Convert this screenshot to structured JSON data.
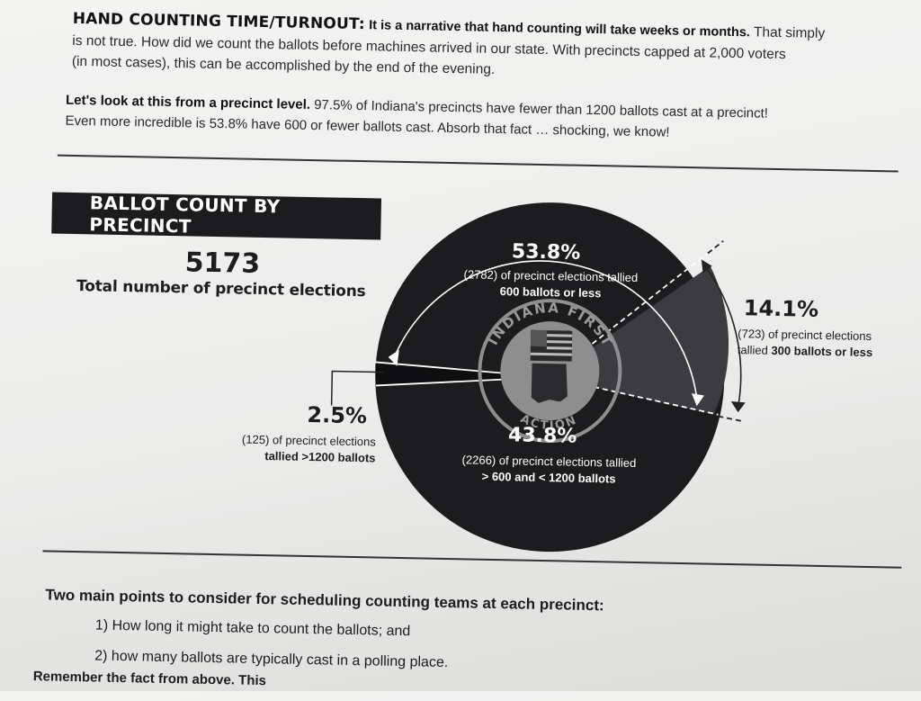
{
  "intro": {
    "heading": "HAND COUNTING TIME/TURNOUT:",
    "claim": "It is a narrative that hand counting will take weeks or months.",
    "line1_rest": " That simply",
    "line2": "is not true. How did we count the ballots before machines arrived in our state. With precincts capped at 2,000 voters",
    "line3": "(in most cases), this can be accomplished by the end of the evening."
  },
  "precinct_level": {
    "heading": "Let's look at this from a precinct level.",
    "line1_rest": " 97.5% of Indiana's precincts have fewer than 1200 ballots cast at a precinct!",
    "line2": "Even more incredible is 53.8% have 600 or fewer ballots cast. Absorb that fact … shocking, we know!"
  },
  "banner": "BALLOT COUNT BY PRECINCT",
  "total": {
    "number": "5173",
    "label": "Total number of precinct elections"
  },
  "segments": {
    "s1": {
      "pct": "53.8%",
      "line1": "(2782) of precinct elections tallied",
      "line2": "600 ballots or less"
    },
    "s2": {
      "pct": "14.1%",
      "line1": "(723) of precinct elections",
      "line2_a": "tallied ",
      "line2_b": "300 ballots or less"
    },
    "s3": {
      "pct": "43.8%",
      "line1": "(2266) of precinct elections tallied",
      "line2": "> 600 and < 1200 ballots"
    },
    "s4": {
      "pct": "2.5%",
      "line1": "(125) of precinct elections",
      "line2": "tallied >1200 ballots"
    }
  },
  "logo": {
    "top": "INDIANA FIRST",
    "bottom": "ACTION"
  },
  "bottom": {
    "title": "Two main points to consider for scheduling counting teams at each precinct:",
    "points": [
      "1) How long it might take to count the ballots; and",
      "2) how many ballots are typically cast in a polling place."
    ],
    "cutoff": "Remember the fact from above. This"
  },
  "colors": {
    "dark": "#1c1c1e",
    "mid": "#333336",
    "grey": "#8e8e8e",
    "white": "#ffffff"
  },
  "chart_data": {
    "type": "pie",
    "title": "BALLOT COUNT BY PRECINCT",
    "total": 5173,
    "slices": [
      {
        "label": "600 ballots or less",
        "count": 2782,
        "value": 53.8
      },
      {
        "label": "> 600 and < 1200 ballots",
        "count": 2266,
        "value": 43.8
      },
      {
        "label": "tallied >1200 ballots",
        "count": 125,
        "value": 2.5
      }
    ],
    "sub_slice": {
      "label": "300 ballots or less",
      "count": 723,
      "value": 14.1,
      "part_of": "600 ballots or less"
    }
  }
}
